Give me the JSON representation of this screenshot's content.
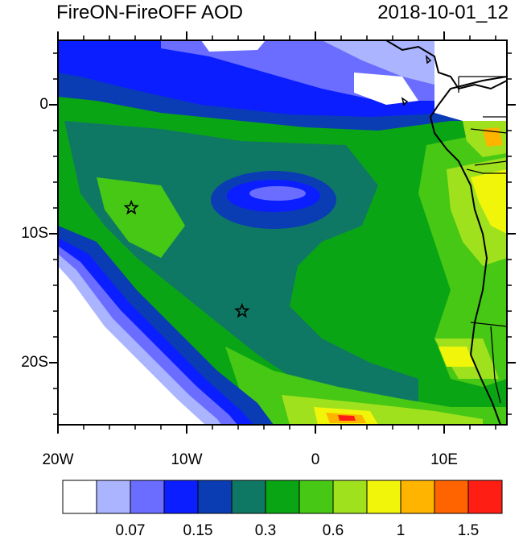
{
  "header": {
    "title": "FireON-FireOFF AOD",
    "datetime": "2018-10-01_12"
  },
  "map": {
    "lat_labels": [
      "0",
      "10S",
      "20S"
    ],
    "lon_labels": [
      "20W",
      "10W",
      "0",
      "10E"
    ],
    "markers": [
      {
        "name": "star-marker-1",
        "lon": -14.3,
        "lat": -8.0
      },
      {
        "name": "star-marker-2",
        "lon": -5.7,
        "lat": -16.0
      }
    ]
  },
  "colorbar": {
    "colors": [
      "#ffffff",
      "#aab4ff",
      "#6a6dff",
      "#0a1eff",
      "#0a3cb4",
      "#0f7864",
      "#0aa514",
      "#46c814",
      "#a0e11e",
      "#f0f50a",
      "#ffb400",
      "#ff6400",
      "#ff1e14"
    ],
    "labels": [
      "0.07",
      "0.15",
      "0.3",
      "0.6",
      "1",
      "1.5"
    ]
  }
}
